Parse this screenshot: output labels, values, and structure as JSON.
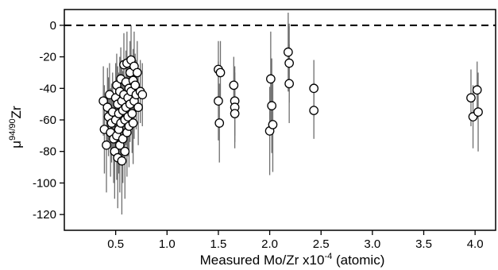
{
  "chart_data": {
    "type": "scatter",
    "title": "",
    "xlabel": "Measured Mo/Zr x10",
    "xlabel_sup": "-4",
    "xlabel_suffix": " (atomic)",
    "ylabel_prefix": "μ",
    "ylabel_sup": "94/90",
    "ylabel_suffix": "Zr",
    "xlim": [
      0.0,
      4.2
    ],
    "ylim": [
      -130,
      10
    ],
    "x_ticks": [
      0.5,
      1.0,
      1.5,
      2.0,
      2.5,
      3.0,
      3.5,
      4.0
    ],
    "x_tick_labels": [
      "0.5",
      "1.0",
      "1.5",
      "2.0",
      "2.5",
      "3.0",
      "3.5",
      "4.0"
    ],
    "y_ticks": [
      0,
      -20,
      -40,
      -60,
      -80,
      -100,
      -120
    ],
    "y_tick_labels": [
      "0",
      "-20",
      "-40",
      "-60",
      "-80",
      "-100",
      "-120"
    ],
    "reference_line": {
      "y": 0,
      "style": "dashed"
    },
    "grid": false,
    "legend": "none",
    "marker_style": "open circle with vertical error bar",
    "points": [
      {
        "x": 0.38,
        "y": -48,
        "err": 22
      },
      {
        "x": 0.39,
        "y": -66,
        "err": 28
      },
      {
        "x": 0.41,
        "y": -76,
        "err": 30
      },
      {
        "x": 0.42,
        "y": -52,
        "err": 25
      },
      {
        "x": 0.43,
        "y": -58,
        "err": 25
      },
      {
        "x": 0.44,
        "y": -44,
        "err": 20
      },
      {
        "x": 0.45,
        "y": -68,
        "err": 28
      },
      {
        "x": 0.46,
        "y": -62,
        "err": 25
      },
      {
        "x": 0.47,
        "y": -55,
        "err": 25
      },
      {
        "x": 0.48,
        "y": -72,
        "err": 28
      },
      {
        "x": 0.49,
        "y": -80,
        "err": 30
      },
      {
        "x": 0.5,
        "y": -46,
        "err": 22
      },
      {
        "x": 0.5,
        "y": -60,
        "err": 26
      },
      {
        "x": 0.51,
        "y": -38,
        "err": 20
      },
      {
        "x": 0.51,
        "y": -70,
        "err": 28
      },
      {
        "x": 0.52,
        "y": -50,
        "err": 24
      },
      {
        "x": 0.52,
        "y": -84,
        "err": 32
      },
      {
        "x": 0.53,
        "y": -56,
        "err": 26
      },
      {
        "x": 0.53,
        "y": -66,
        "err": 28
      },
      {
        "x": 0.54,
        "y": -42,
        "err": 22
      },
      {
        "x": 0.54,
        "y": -76,
        "err": 30
      },
      {
        "x": 0.55,
        "y": -34,
        "err": 20
      },
      {
        "x": 0.55,
        "y": -62,
        "err": 26
      },
      {
        "x": 0.56,
        "y": -48,
        "err": 24
      },
      {
        "x": 0.56,
        "y": -86,
        "err": 34
      },
      {
        "x": 0.57,
        "y": -54,
        "err": 25
      },
      {
        "x": 0.57,
        "y": -72,
        "err": 28
      },
      {
        "x": 0.58,
        "y": -25,
        "err": 20
      },
      {
        "x": 0.58,
        "y": -44,
        "err": 22
      },
      {
        "x": 0.59,
        "y": -60,
        "err": 26
      },
      {
        "x": 0.59,
        "y": -80,
        "err": 30
      },
      {
        "x": 0.6,
        "y": -36,
        "err": 20
      },
      {
        "x": 0.6,
        "y": -52,
        "err": 24
      },
      {
        "x": 0.61,
        "y": -24,
        "err": 20
      },
      {
        "x": 0.61,
        "y": -68,
        "err": 28
      },
      {
        "x": 0.62,
        "y": -46,
        "err": 22
      },
      {
        "x": 0.62,
        "y": -58,
        "err": 25
      },
      {
        "x": 0.63,
        "y": -40,
        "err": 20
      },
      {
        "x": 0.63,
        "y": -64,
        "err": 26
      },
      {
        "x": 0.64,
        "y": -30,
        "err": 20
      },
      {
        "x": 0.64,
        "y": -50,
        "err": 24
      },
      {
        "x": 0.65,
        "y": -22,
        "err": 22
      },
      {
        "x": 0.65,
        "y": -42,
        "err": 22
      },
      {
        "x": 0.66,
        "y": -56,
        "err": 25
      },
      {
        "x": 0.67,
        "y": -35,
        "err": 20
      },
      {
        "x": 0.67,
        "y": -62,
        "err": 26
      },
      {
        "x": 0.68,
        "y": -26,
        "err": 22
      },
      {
        "x": 0.68,
        "y": -48,
        "err": 24
      },
      {
        "x": 0.69,
        "y": -38,
        "err": 20
      },
      {
        "x": 0.7,
        "y": -44,
        "err": 22
      },
      {
        "x": 0.71,
        "y": -30,
        "err": 20
      },
      {
        "x": 0.72,
        "y": -52,
        "err": 24
      },
      {
        "x": 0.74,
        "y": -42,
        "err": 20
      },
      {
        "x": 0.76,
        "y": -44,
        "err": 20
      },
      {
        "x": 1.5,
        "y": -28,
        "err": 18
      },
      {
        "x": 1.5,
        "y": -48,
        "err": 25
      },
      {
        "x": 1.51,
        "y": -62,
        "err": 25
      },
      {
        "x": 1.52,
        "y": -30,
        "err": 20
      },
      {
        "x": 1.65,
        "y": -38,
        "err": 18
      },
      {
        "x": 1.66,
        "y": -48,
        "err": 22
      },
      {
        "x": 1.66,
        "y": -52,
        "err": 22
      },
      {
        "x": 1.66,
        "y": -56,
        "err": 22
      },
      {
        "x": 2.0,
        "y": -67,
        "err": 28
      },
      {
        "x": 2.01,
        "y": -34,
        "err": 30
      },
      {
        "x": 2.02,
        "y": -51,
        "err": 30
      },
      {
        "x": 2.03,
        "y": -63,
        "err": 30
      },
      {
        "x": 2.18,
        "y": -17,
        "err": 25
      },
      {
        "x": 2.19,
        "y": -24,
        "err": 25
      },
      {
        "x": 2.19,
        "y": -37,
        "err": 25
      },
      {
        "x": 2.43,
        "y": -40,
        "err": 18
      },
      {
        "x": 2.43,
        "y": -54,
        "err": 18
      },
      {
        "x": 3.96,
        "y": -46,
        "err": 18
      },
      {
        "x": 3.98,
        "y": -58,
        "err": 20
      },
      {
        "x": 4.02,
        "y": -41,
        "err": 18
      },
      {
        "x": 4.03,
        "y": -55,
        "err": 25
      }
    ]
  }
}
